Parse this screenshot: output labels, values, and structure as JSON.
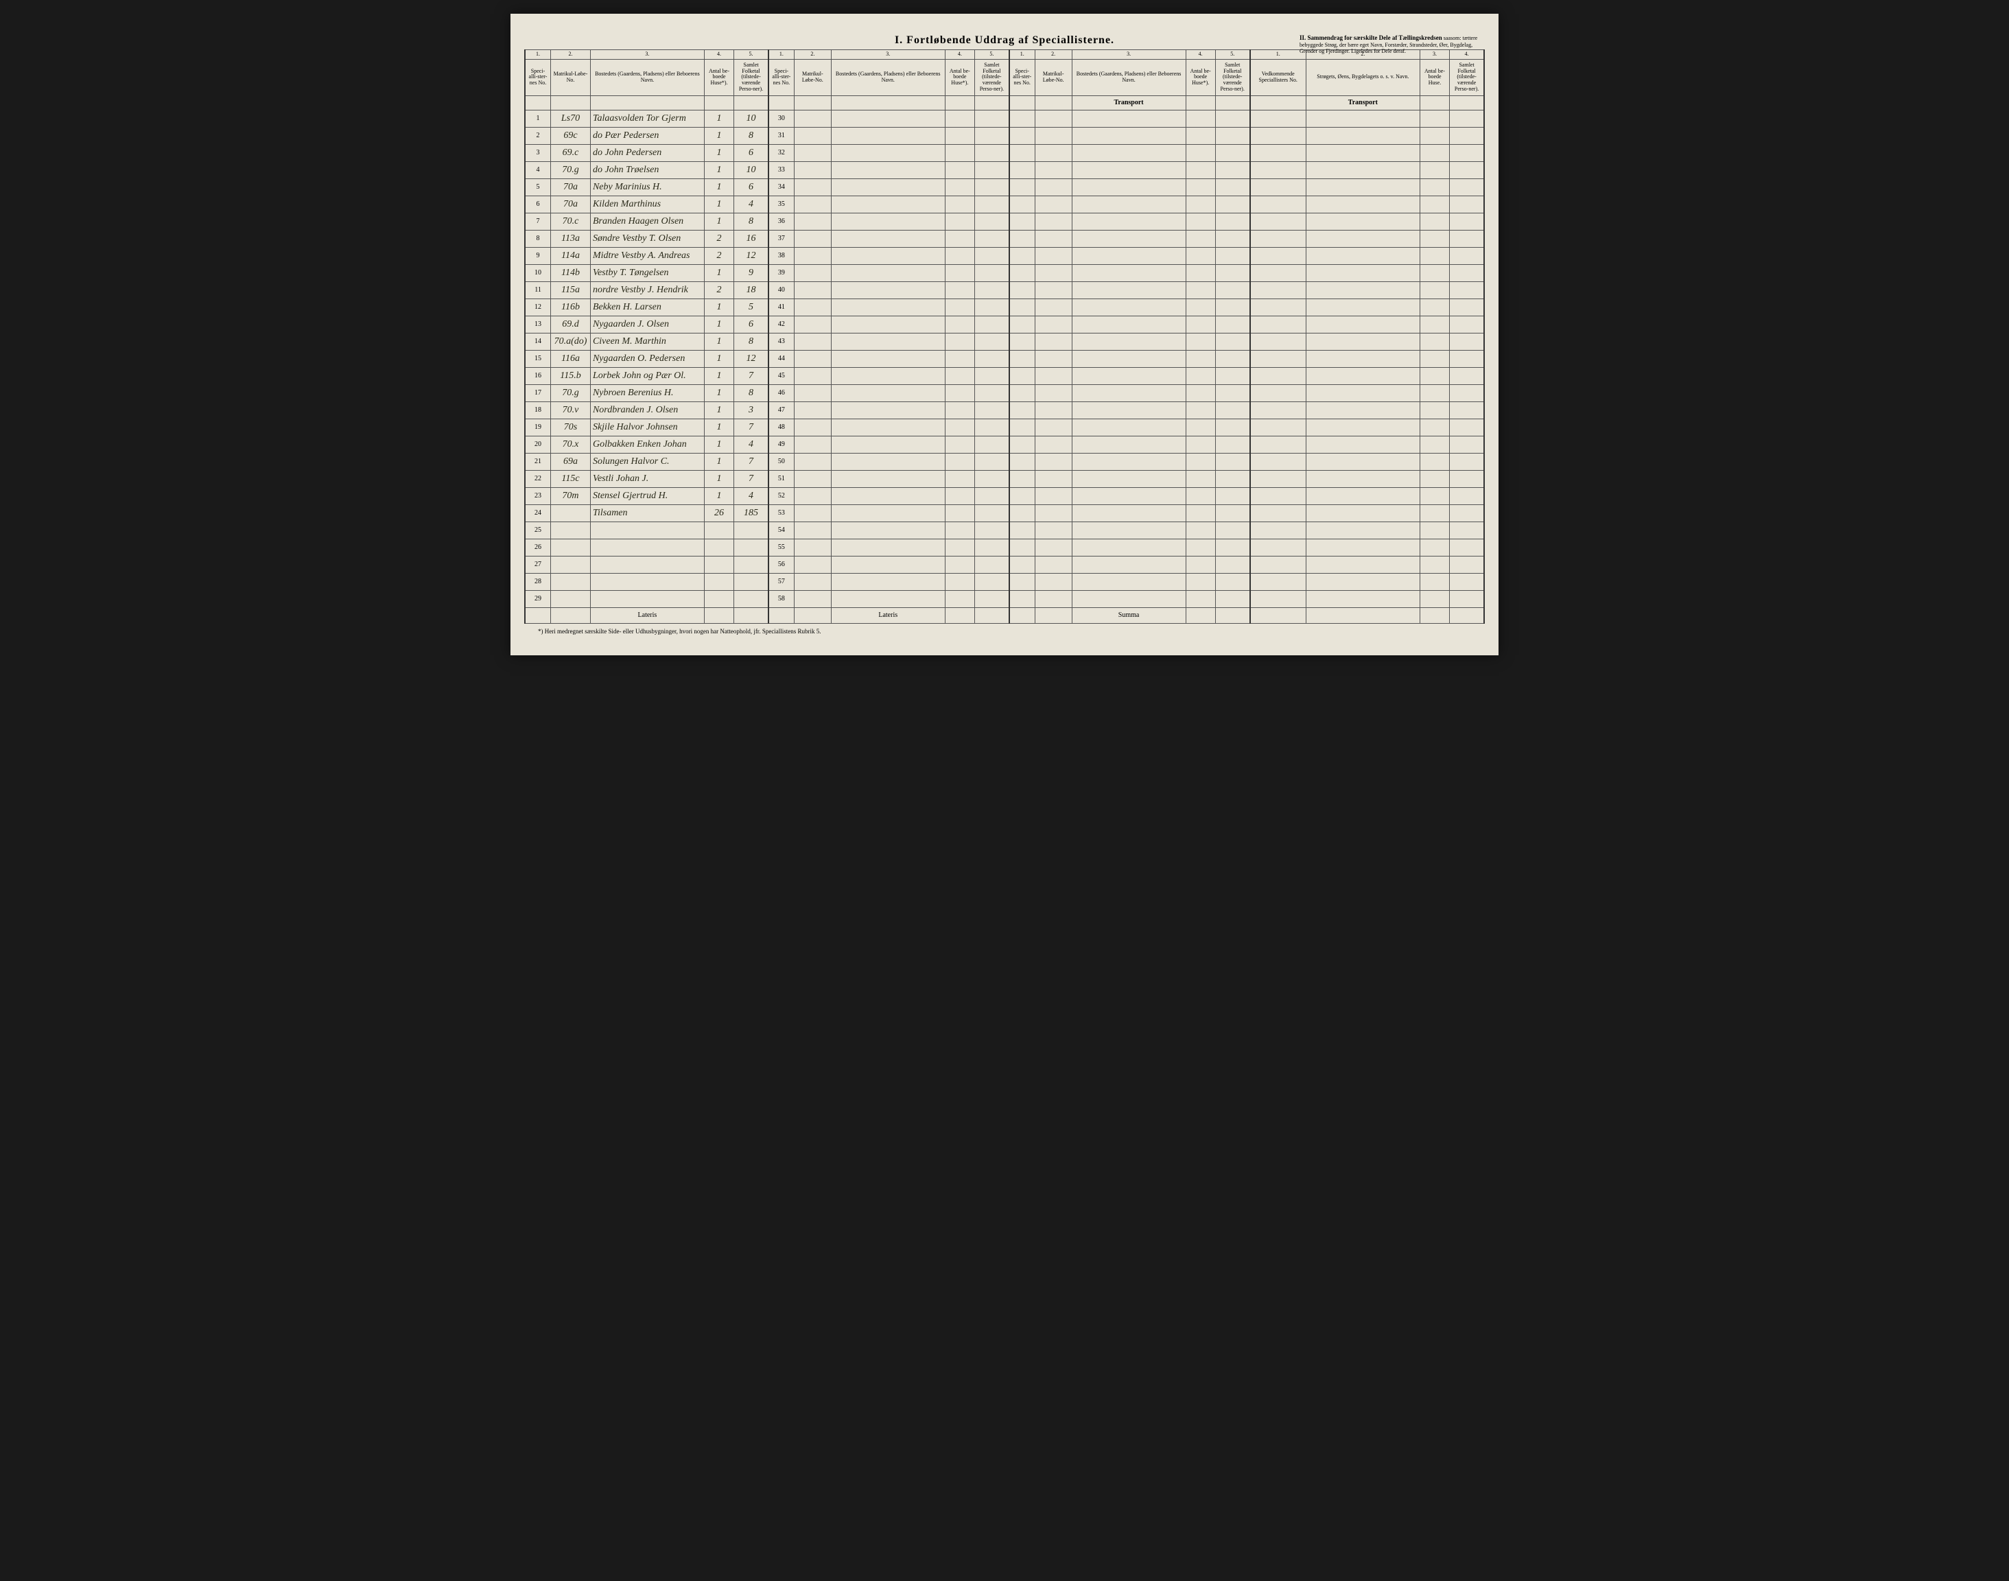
{
  "title_main": "I.  Fortløbende Uddrag af Speciallisterne.",
  "section_ii_title": "II.  Sammendrag for særskilte Dele af Tællingskredsen",
  "section_ii_sub": "saasom: tættere bebyggede Strøg, der bære eget Navn, Forstæder, Strandsteder, Øer, Bygdelag, Grender og Fjerdinger. Ligeledes for Dele deraf.",
  "col_nums_a": [
    "1.",
    "2.",
    "3.",
    "4.",
    "5."
  ],
  "col_nums_b": [
    "1.",
    "2.",
    "3.",
    "4."
  ],
  "hdr": {
    "spec": "Speci-alli-ster-nes No.",
    "matrik": "Matrikul-Løbe-No.",
    "bosted": "Bostedets (Gaardens, Pladsens) eller Beboerens Navn.",
    "antal": "Antal be-boede Huse*).",
    "folketal": "Samlet Folketal (tilstede-værende Perso-ner).",
    "vedk": "Vedkommende Speciallisters No.",
    "strog": "Strøgets, Øens, Bygdelagets o. s. v. Navn.",
    "antal2": "Antal be-boede Huse.",
    "folketal2": "Samlet Folketal (tilstede-værende Perso-ner)."
  },
  "transport": "Transport",
  "lateris": "Lateris",
  "summa": "Summa",
  "footnote": "*) Heri medregnet særskilte Side- eller Udhusbygninger, hvori nogen har Natteophold, jfr. Speciallistens Rubrik 5.",
  "rows_left": [
    {
      "n": "1",
      "m": "Ls70",
      "b": "Talaasvolden Tor Gjerm",
      "a": "1",
      "f": "10"
    },
    {
      "n": "2",
      "m": "69c",
      "b": "do Pær Pedersen",
      "a": "1",
      "f": "8"
    },
    {
      "n": "3",
      "m": "69.c",
      "b": "do John Pedersen",
      "a": "1",
      "f": "6"
    },
    {
      "n": "4",
      "m": "70.g",
      "b": "do John Trøelsen",
      "a": "1",
      "f": "10"
    },
    {
      "n": "5",
      "m": "70a",
      "b": "Neby Marinius H.",
      "a": "1",
      "f": "6"
    },
    {
      "n": "6",
      "m": "70a",
      "b": "Kilden Marthinus",
      "a": "1",
      "f": "4"
    },
    {
      "n": "7",
      "m": "70.c",
      "b": "Branden Haagen Olsen",
      "a": "1",
      "f": "8"
    },
    {
      "n": "8",
      "m": "113a",
      "b": "Søndre Vestby T. Olsen",
      "a": "2",
      "f": "16"
    },
    {
      "n": "9",
      "m": "114a",
      "b": "Midtre Vestby A. Andreas",
      "a": "2",
      "f": "12"
    },
    {
      "n": "10",
      "m": "114b",
      "b": "Vestby T. Tøngelsen",
      "a": "1",
      "f": "9"
    },
    {
      "n": "11",
      "m": "115a",
      "b": "nordre Vestby J. Hendrik",
      "a": "2",
      "f": "18"
    },
    {
      "n": "12",
      "m": "116b",
      "b": "Bekken H. Larsen",
      "a": "1",
      "f": "5"
    },
    {
      "n": "13",
      "m": "69.d",
      "b": "Nygaarden J. Olsen",
      "a": "1",
      "f": "6"
    },
    {
      "n": "14",
      "m": "70.a(do)",
      "b": "Civeen M. Marthin",
      "a": "1",
      "f": "8"
    },
    {
      "n": "15",
      "m": "116a",
      "b": "Nygaarden O. Pedersen",
      "a": "1",
      "f": "12"
    },
    {
      "n": "16",
      "m": "115.b",
      "b": "Lorbek John og Pær Ol.",
      "a": "1",
      "f": "7"
    },
    {
      "n": "17",
      "m": "70.g",
      "b": "Nybroen Berenius H.",
      "a": "1",
      "f": "8"
    },
    {
      "n": "18",
      "m": "70.v",
      "b": "Nordbranden J. Olsen",
      "a": "1",
      "f": "3"
    },
    {
      "n": "19",
      "m": "70s",
      "b": "Skjile Halvor Johnsen",
      "a": "1",
      "f": "7"
    },
    {
      "n": "20",
      "m": "70.x",
      "b": "Golbakken Enken Johan",
      "a": "1",
      "f": "4"
    },
    {
      "n": "21",
      "m": "69a",
      "b": "Solungen Halvor C.",
      "a": "1",
      "f": "7"
    },
    {
      "n": "22",
      "m": "115c",
      "b": "Vestli Johan J.",
      "a": "1",
      "f": "7"
    },
    {
      "n": "23",
      "m": "70m",
      "b": "Stensel Gjertrud H.",
      "a": "1",
      "f": "4"
    },
    {
      "n": "24",
      "m": "",
      "b": "Tilsamen",
      "a": "26",
      "f": "185"
    },
    {
      "n": "25",
      "m": "",
      "b": "",
      "a": "",
      "f": ""
    },
    {
      "n": "26",
      "m": "",
      "b": "",
      "a": "",
      "f": ""
    },
    {
      "n": "27",
      "m": "",
      "b": "",
      "a": "",
      "f": ""
    },
    {
      "n": "28",
      "m": "",
      "b": "",
      "a": "",
      "f": ""
    },
    {
      "n": "29",
      "m": "",
      "b": "",
      "a": "",
      "f": ""
    }
  ],
  "rows_mid_start": 30,
  "rows_mid_count": 29
}
